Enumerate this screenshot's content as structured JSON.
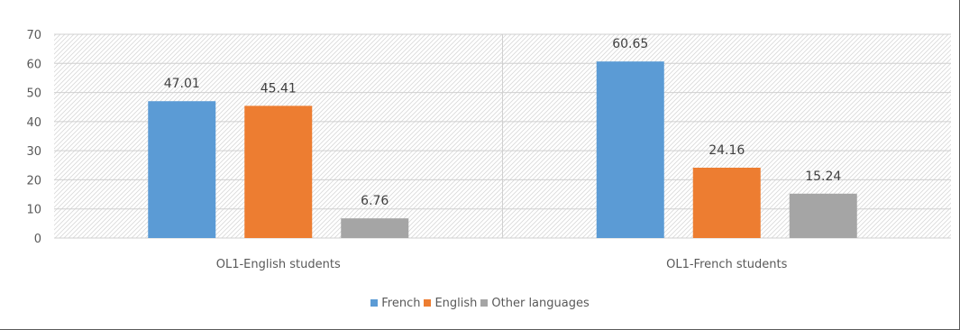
{
  "chart_data": {
    "type": "bar",
    "categories": [
      "OL1-English students",
      "OL1-French students"
    ],
    "series": [
      {
        "name": "French",
        "color": "#5b9bd5",
        "values": [
          47.01,
          60.65
        ],
        "labels": [
          "47.01",
          "60.65"
        ]
      },
      {
        "name": "English",
        "color": "#ed7d31",
        "values": [
          45.41,
          24.16
        ],
        "labels": [
          "45.41",
          "24.16"
        ]
      },
      {
        "name": "Other languages",
        "color": "#a5a5a5",
        "values": [
          6.76,
          15.24
        ],
        "labels": [
          "6.76",
          "15.24"
        ]
      }
    ],
    "ylim": [
      0,
      70
    ],
    "yticks": [
      0,
      10,
      20,
      30,
      40,
      50,
      60,
      70
    ],
    "grid": true,
    "legend_position": "bottom"
  }
}
